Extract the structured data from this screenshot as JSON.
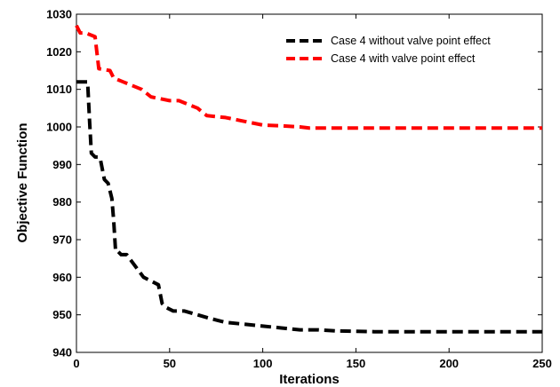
{
  "chart_data": {
    "type": "line",
    "title": "",
    "xlabel": "Iterations",
    "ylabel": "Objective Function",
    "xlim": [
      0,
      250
    ],
    "ylim": [
      940,
      1030
    ],
    "xticks": [
      0,
      50,
      100,
      150,
      200,
      250
    ],
    "yticks": [
      940,
      950,
      960,
      970,
      980,
      990,
      1000,
      1010,
      1020,
      1030
    ],
    "grid": false,
    "legend_position": "top-right",
    "series": [
      {
        "name": "Case 4 without valve point effect",
        "color": "#000000",
        "line_style": "dashed",
        "x": [
          0,
          6,
          7,
          8,
          10,
          12,
          13,
          15,
          17,
          19,
          20,
          21,
          22,
          24,
          27,
          30,
          33,
          36,
          40,
          44,
          46,
          48,
          52,
          58,
          65,
          72,
          76,
          80,
          90,
          100,
          110,
          120,
          130,
          140,
          160,
          200,
          250
        ],
        "y": [
          1012,
          1012,
          1002,
          993,
          992,
          992,
          991,
          986,
          985,
          981,
          975,
          967,
          967,
          966,
          966,
          964,
          962,
          960,
          959,
          958,
          953,
          952,
          951,
          951,
          950,
          949,
          948.5,
          948,
          947.5,
          947,
          946.5,
          946,
          946,
          945.7,
          945.5,
          945.5,
          945.5
        ]
      },
      {
        "name": "Case 4 with valve point effect",
        "color": "#ff0000",
        "line_style": "dashed",
        "x": [
          0,
          2,
          5,
          10,
          12,
          18,
          20,
          25,
          30,
          35,
          40,
          45,
          50,
          55,
          60,
          65,
          70,
          80,
          85,
          90,
          100,
          110,
          120,
          125,
          150,
          200,
          250
        ],
        "y": [
          1027,
          1025,
          1025,
          1024,
          1015.5,
          1015,
          1013,
          1012,
          1011,
          1010,
          1008,
          1007.5,
          1007,
          1007,
          1006,
          1005,
          1003,
          1002.5,
          1002,
          1001.5,
          1000.5,
          1000.3,
          1000,
          999.7,
          999.7,
          999.7,
          999.7
        ]
      }
    ]
  }
}
